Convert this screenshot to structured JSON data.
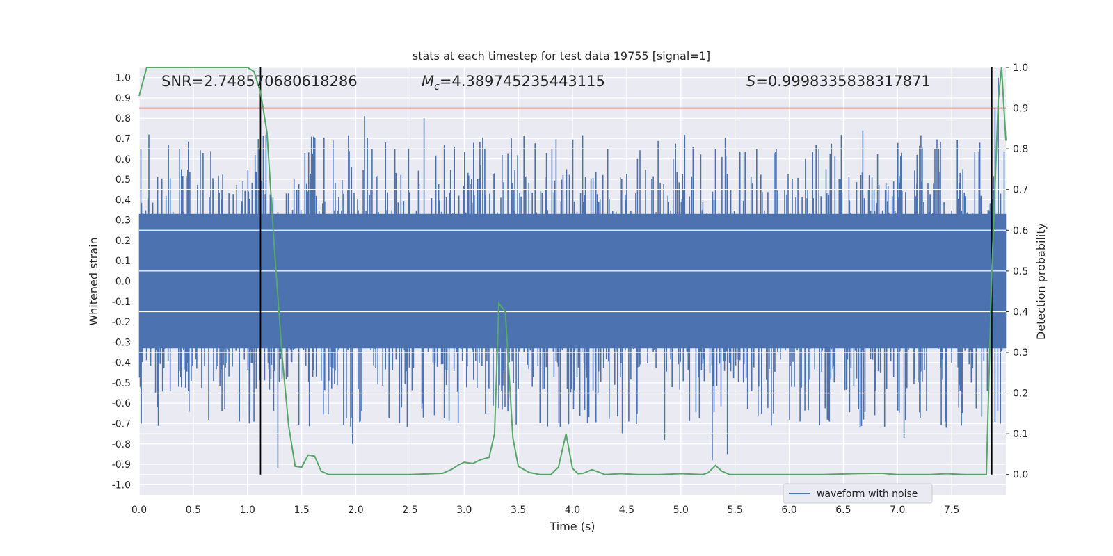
{
  "chart_data": {
    "type": "line",
    "title": "stats at each timestep for test data 19755 [signal=1]",
    "xlabel": "Time (s)",
    "ylabel_left": "Whitened strain",
    "ylabel_right": "Detection probability",
    "xlim": [
      0.0,
      8.0
    ],
    "ylim_left": [
      -1.05,
      1.05
    ],
    "ylim_right": [
      -0.05,
      1.0
    ],
    "grid": true,
    "xticks": [
      "0.0",
      "0.5",
      "1.0",
      "1.5",
      "2.0",
      "2.5",
      "3.0",
      "3.5",
      "4.0",
      "4.5",
      "5.0",
      "5.5",
      "6.0",
      "6.5",
      "7.0",
      "7.5"
    ],
    "yticks_left": [
      "1.0",
      "0.9",
      "0.8",
      "0.7",
      "0.6",
      "0.5",
      "0.4",
      "0.3",
      "0.2",
      "0.1",
      "0.0",
      "-0.1",
      "-0.2",
      "-0.3",
      "-0.4",
      "-0.5",
      "-0.6",
      "-0.7",
      "-0.8",
      "-0.9",
      "-1.0"
    ],
    "yticks_right": [
      "1.0",
      "0.9",
      "0.8",
      "0.7",
      "0.6",
      "0.5",
      "0.4",
      "0.3",
      "0.2",
      "0.1",
      "0.0"
    ],
    "annotations": {
      "snr": "SNR=2.748570680618286",
      "mc_symbol": "M",
      "mc_sub": "c",
      "mc_value": "=4.389745235443115",
      "s_symbol": "S",
      "s_value": "=0.9998335838317871"
    },
    "legend": {
      "entries": [
        "waveform with noise"
      ],
      "position": "lower-right"
    },
    "threshold": {
      "axis": "right",
      "value": 0.9,
      "color": "#c44e52"
    },
    "vlines": [
      1.12,
      7.87
    ],
    "colors": {
      "strain": "#4c72b0",
      "prob": "#55a868",
      "threshold": "#c44e52",
      "vline": "#000000",
      "bg": "#eaeaf2"
    },
    "series": [
      {
        "name": "waveform with noise",
        "axis": "left",
        "kind": "noise",
        "core_amplitude": 0.33,
        "envelope": [
          0.2,
          0.35,
          0.45,
          0.55,
          0.72
        ],
        "peaks": [
          {
            "x": 0.02,
            "y": -0.7
          },
          {
            "x": 0.09,
            "y": 0.72
          },
          {
            "x": 0.27,
            "y": 0.67
          },
          {
            "x": 0.59,
            "y": 0.63
          },
          {
            "x": 1.07,
            "y": 0.62
          },
          {
            "x": 1.06,
            "y": -0.69
          },
          {
            "x": 1.28,
            "y": -0.92
          },
          {
            "x": 1.43,
            "y": 0.5
          },
          {
            "x": 1.53,
            "y": 0.63
          },
          {
            "x": 1.61,
            "y": 0.71
          },
          {
            "x": 1.97,
            "y": -0.8
          },
          {
            "x": 1.96,
            "y": 0.56
          },
          {
            "x": 2.08,
            "y": 0.81
          },
          {
            "x": 2.15,
            "y": 0.65
          },
          {
            "x": 2.36,
            "y": 0.65
          },
          {
            "x": 2.62,
            "y": -0.6
          },
          {
            "x": 2.63,
            "y": 0.8
          },
          {
            "x": 2.91,
            "y": 0.66
          },
          {
            "x": 3.15,
            "y": 0.57
          },
          {
            "x": 3.35,
            "y": 0.62
          },
          {
            "x": 3.76,
            "y": 0.63
          },
          {
            "x": 3.81,
            "y": 0.65
          },
          {
            "x": 4.46,
            "y": -0.75
          },
          {
            "x": 4.6,
            "y": 0.6
          },
          {
            "x": 4.85,
            "y": -0.78
          },
          {
            "x": 4.93,
            "y": 0.6
          },
          {
            "x": 5.29,
            "y": -0.88
          },
          {
            "x": 5.43,
            "y": -0.85
          },
          {
            "x": 5.38,
            "y": 0.61
          },
          {
            "x": 6.15,
            "y": 0.6
          },
          {
            "x": 6.34,
            "y": 0.55
          },
          {
            "x": 6.68,
            "y": 0.74
          },
          {
            "x": 6.64,
            "y": -0.63
          },
          {
            "x": 7.06,
            "y": -0.77
          },
          {
            "x": 7.18,
            "y": 0.62
          },
          {
            "x": 7.38,
            "y": 0.65
          },
          {
            "x": 7.45,
            "y": -0.72
          },
          {
            "x": 7.59,
            "y": -0.71
          },
          {
            "x": 7.76,
            "y": 0.68
          },
          {
            "x": 7.93,
            "y": 1.0
          },
          {
            "x": 7.95,
            "y": -0.7
          },
          {
            "x": 7.9,
            "y": 0.85
          }
        ]
      },
      {
        "name": "Detection probability",
        "axis": "right",
        "x": [
          0.0,
          0.07,
          0.5,
          1.0,
          1.06,
          1.12,
          1.18,
          1.25,
          1.32,
          1.38,
          1.44,
          1.5,
          1.56,
          1.62,
          1.68,
          1.75,
          2.0,
          2.5,
          2.8,
          2.88,
          2.95,
          3.0,
          3.08,
          3.15,
          3.23,
          3.28,
          3.32,
          3.38,
          3.45,
          3.5,
          3.6,
          3.7,
          3.8,
          3.87,
          3.94,
          4.0,
          4.05,
          4.1,
          4.18,
          4.3,
          4.45,
          4.6,
          4.8,
          5.0,
          5.2,
          5.25,
          5.32,
          5.38,
          5.45,
          5.6,
          5.8,
          6.0,
          6.3,
          6.6,
          6.85,
          7.0,
          7.3,
          7.45,
          7.62,
          7.7,
          7.82,
          7.87,
          7.93,
          7.96,
          8.0
        ],
        "y": [
          0.93,
          1.0,
          1.0,
          1.0,
          0.99,
          0.94,
          0.84,
          0.55,
          0.29,
          0.12,
          0.02,
          0.018,
          0.048,
          0.045,
          0.008,
          0.0,
          0.0,
          0.0,
          0.003,
          0.012,
          0.024,
          0.03,
          0.027,
          0.036,
          0.042,
          0.1,
          0.42,
          0.4,
          0.09,
          0.02,
          0.005,
          0.0,
          0.0,
          0.018,
          0.1,
          0.015,
          0.002,
          0.003,
          0.012,
          0.0,
          0.002,
          0.0,
          0.0,
          0.002,
          0.0,
          0.004,
          0.022,
          0.008,
          0.0,
          0.0,
          0.0,
          0.0,
          0.0,
          0.002,
          0.003,
          0.0,
          0.0,
          0.002,
          0.0,
          0.0,
          0.0,
          0.5,
          0.92,
          1.0,
          0.82
        ]
      }
    ]
  }
}
